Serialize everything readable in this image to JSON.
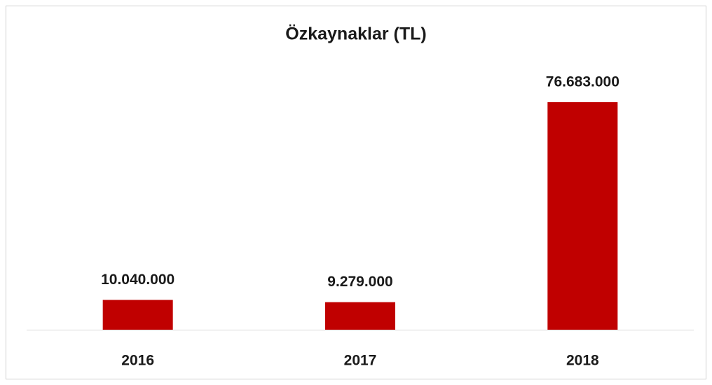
{
  "chart_data": {
    "type": "bar",
    "title": "Özkaynaklar (TL)",
    "categories": [
      "2016",
      "2017",
      "2018"
    ],
    "values": [
      10040000,
      9279000,
      76683000
    ],
    "value_labels": [
      "10.040.000",
      "9.279.000",
      "76.683.000"
    ],
    "color": "#c00000"
  }
}
